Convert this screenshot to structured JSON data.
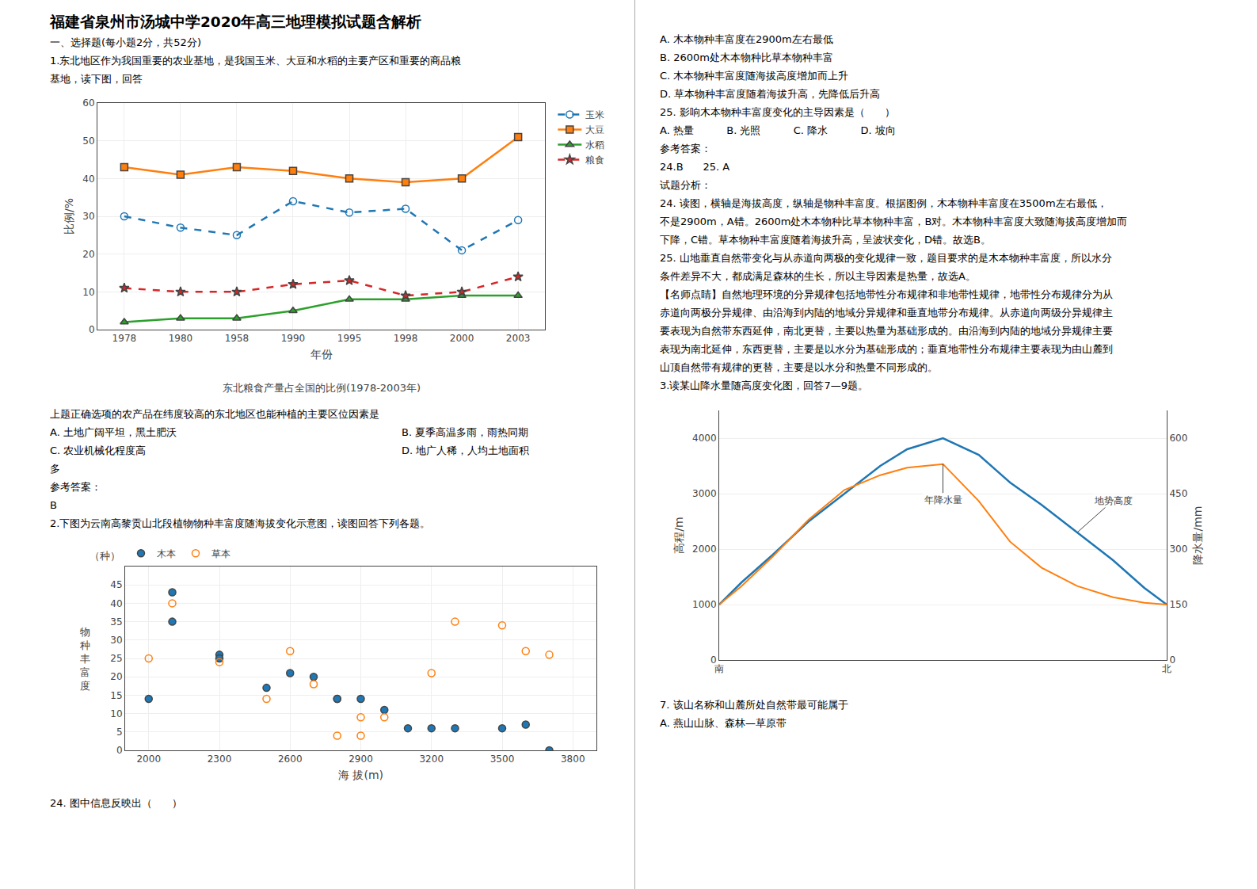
{
  "title": "福建省泉州市汤城中学2020年高三地理模拟试题含解析",
  "annotations": [
    "一、选择题(每小题2分，共52分)",
    "1.东北地区作为我国重要的农业基地，是我国玉米、大豆和水稻的主要产区和重要的商品粮",
    "基地，读下图，回答",
    "上题正确选项的农产品在纬度较高的东北地区也能种植的主要区位因素是",
    [
      "A. 土地广阔平坦，黑土肥沃",
      "B. 夏季高温多雨，雨热同期"
    ],
    [
      "C. 农业机械化程度高",
      "D. 地广人稀，人均土地面积"
    ],
    "多",
    "参考答案：",
    "B",
    "2.下图为云南高黎贡山北段植物物种丰富度随海拔变化示意图，读图回答下列各题。",
    "24. 图中信息反映出（      ）",
    "A. 木本物种丰富度在2900m左右最低",
    "B. 2600m处木本物种比草本物种丰富",
    "C. 木本物种丰富度随海拔高度增加而上升",
    "D. 草本物种丰富度随着海拔升高，先降低后升高",
    "25. 影响木本物种丰富度变化的主导因素是（      ）",
    "A. 热量          B. 光照          C. 降水          D. 坡向",
    "参考答案：",
    "24.B      25. A",
    "试题分析：",
    "24. 读图，横轴是海拔高度，纵轴是物种丰富度。根据图例，木本物种丰富度在3500m左右最低，",
    "不是2900m，A错。2600m处木本物种比草本物种丰富，B对。木本物种丰富度大致随海拔高度增加而",
    "下降，C错。草本物种丰富度随着海拔升高，呈波状变化，D错。故选B。",
    "25. 山地垂直自然带变化与从赤道向两极的变化规律一致，题目要求的是木本物种丰富度，所以水分",
    "条件差异不大，都成满足森林的生长，所以主导因素是热量，故选A。",
    "【名师点睛】自然地理环境的分异规律包括地带性分布规律和非地带性规律，地带性分布规律分为从",
    "赤道向两极分异规律、由沿海到内陆的地域分异规律和垂直地带分布规律。从赤道向两级分异规律主",
    "要表现为自然带东西延伸，南北更替，主要以热量为基础形成的。由沿海到内陆的地域分异规律主要",
    "表现为南北延伸，东西更替，主要是以水分为基础形成的；垂直地带性分布规律主要表现为由山麓到",
    "山顶自然带有规律的更替，主要是以水分和热量不同形成的。",
    "3.读某山降水量随高度变化图，回答7—9题。",
    "7. 该山名称和山麓所处自然带最可能属于",
    "A. 燕山山脉、森林—草原带"
  ],
  "chart_data": [
    {
      "type": "line",
      "title": "东北粮食产量占全国的比例(1978-2003年)",
      "categories": [
        "1978",
        "1980",
        "1958",
        "1990",
        "1995",
        "1998",
        "2000",
        "2003"
      ],
      "series": [
        {
          "name": "玉米",
          "values": [
            30,
            27,
            25,
            34,
            31,
            32,
            21,
            29
          ],
          "line_style": "dashed",
          "marker": "circle-open"
        },
        {
          "name": "大豆",
          "values": [
            43,
            41,
            43,
            42,
            40,
            39,
            40,
            51
          ],
          "line_style": "solid",
          "marker": "square"
        },
        {
          "name": "水稻",
          "values": [
            2,
            3,
            3,
            5,
            8,
            8,
            9,
            9
          ],
          "line_style": "solid",
          "marker": "triangle-up"
        },
        {
          "name": "粮食",
          "values": [
            11,
            10,
            10,
            12,
            13,
            9,
            10,
            14
          ],
          "line_style": "dashed",
          "marker": "star"
        }
      ],
      "xlabel": "年份",
      "ylabel": "比例/%",
      "ylim": [
        0,
        60
      ],
      "yticks": [
        0,
        10,
        20,
        30,
        40,
        50,
        60
      ],
      "legend": "upper right"
    },
    {
      "type": "scatter",
      "series": [
        {
          "name": "木本",
          "marker": "circle",
          "x": [
            2000,
            2100,
            2100,
            2300,
            2300,
            2500,
            2600,
            2700,
            2800,
            2800,
            2900,
            3000,
            3100,
            3200,
            3300,
            3500,
            3600,
            3700
          ],
          "values": [
            14,
            43,
            35,
            26,
            25,
            17,
            21,
            20,
            14,
            14,
            14,
            11,
            6,
            6,
            6,
            6,
            7,
            0
          ]
        },
        {
          "name": "草本",
          "marker": "circle-open",
          "x": [
            2000,
            2100,
            2300,
            2500,
            2600,
            2700,
            2800,
            2900,
            2900,
            3000,
            3200,
            3300,
            3500,
            3600,
            3700
          ],
          "values": [
            25,
            40,
            24,
            14,
            27,
            18,
            4,
            4,
            9,
            9,
            21,
            35,
            34,
            27,
            26
          ]
        }
      ],
      "xlabel": "海 拔(m)",
      "ylabel": "物\n种\n丰\n富\n度",
      "annotations": [
        "（种）"
      ],
      "xlim": [
        1900,
        3900
      ],
      "xticks": [
        2000,
        2300,
        2600,
        2900,
        3200,
        3500,
        3800
      ],
      "ylim": [
        0,
        50
      ],
      "yticks": [
        0,
        5,
        10,
        15,
        20,
        25,
        30,
        35,
        40,
        45
      ],
      "legend": "upper left"
    },
    {
      "type": "line",
      "x": [
        0,
        0.05,
        0.12,
        0.2,
        0.28,
        0.36,
        0.42,
        0.5,
        0.58,
        0.65,
        0.72,
        0.8,
        0.88,
        0.95,
        1.0
      ],
      "series": [
        {
          "name": "地势高度",
          "values": [
            1000,
            1400,
            1900,
            2500,
            3000,
            3500,
            3800,
            4000,
            3700,
            3200,
            2800,
            2300,
            1800,
            1300,
            1000
          ]
        },
        {
          "name": "年降水量",
          "axis": "y2",
          "values": [
            150,
            200,
            280,
            380,
            460,
            500,
            520,
            530,
            430,
            320,
            250,
            200,
            170,
            155,
            150
          ]
        }
      ],
      "xlim": [
        0,
        1
      ],
      "xticks": [
        {
          "value": 0,
          "label": "南"
        },
        {
          "value": 1,
          "label": "北"
        }
      ],
      "ylabel": "高程/m",
      "ylim": [
        0,
        4500
      ],
      "yticks": [
        0,
        1000,
        2000,
        3000,
        4000
      ],
      "y2label": "降水量/mm",
      "y2lim": [
        0,
        675
      ],
      "y2ticks": [
        0,
        150,
        300,
        450,
        600
      ]
    }
  ]
}
